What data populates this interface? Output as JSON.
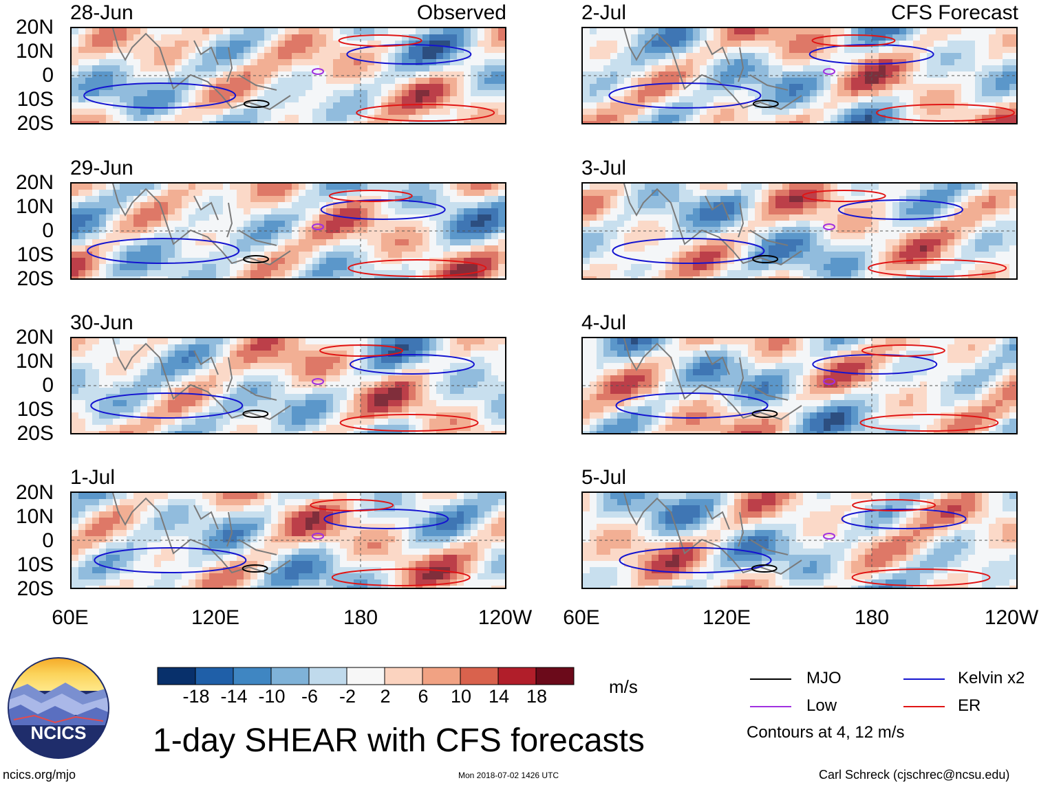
{
  "header": {
    "left_title": "Observed",
    "right_title": "CFS Forecast"
  },
  "panels": {
    "observed": [
      "28-Jun",
      "29-Jun",
      "30-Jun",
      "1-Jul"
    ],
    "forecast": [
      "2-Jul",
      "3-Jul",
      "4-Jul",
      "5-Jul"
    ]
  },
  "axes": {
    "lat_labels": [
      "20N",
      "10N",
      "0",
      "10S",
      "20S"
    ],
    "lon_labels": [
      "60E",
      "120E",
      "180",
      "120W"
    ]
  },
  "colorbar": {
    "ticks": [
      "-18",
      "-14",
      "-10",
      "-6",
      "-2",
      "2",
      "6",
      "10",
      "14",
      "18"
    ],
    "colors": [
      "#08306b",
      "#1f5fa8",
      "#3f86c2",
      "#7fb2d8",
      "#c0daec",
      "#f7f7f7",
      "#fbd3bf",
      "#f1a283",
      "#d9624d",
      "#b11e2a",
      "#6b0a1a"
    ],
    "units": "m/s"
  },
  "legend": {
    "items": [
      {
        "label": "MJO",
        "color": "#000000"
      },
      {
        "label": "Kelvin x2",
        "color": "#1414d0"
      },
      {
        "label": "Low",
        "color": "#a030e0"
      },
      {
        "label": "ER",
        "color": "#e01414"
      }
    ],
    "note": "Contours at 4, 12 m/s"
  },
  "logo": {
    "text": "NCICS"
  },
  "title": "1-day SHEAR with CFS forecasts",
  "footer": {
    "url": "ncics.org/mjo",
    "timestamp": "Mon 2018-07-02 1426 UTC",
    "credit": "Carl Schreck (cjschrec@ncsu.edu)"
  }
}
